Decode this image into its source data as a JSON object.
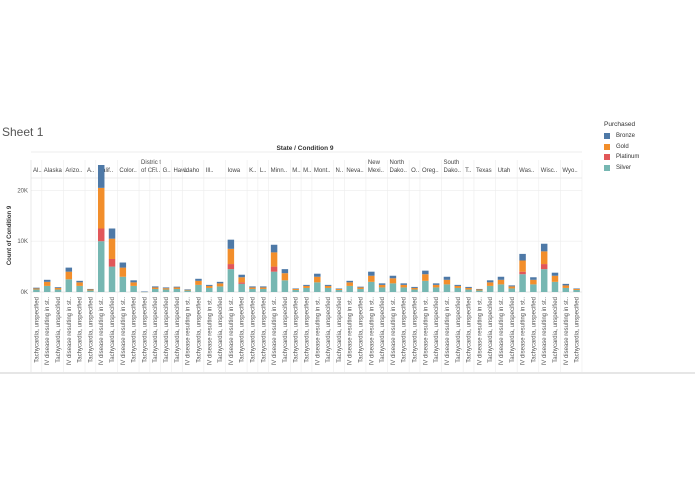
{
  "sheet": {
    "title": "Sheet 1"
  },
  "legend": {
    "title": "Purchased",
    "items": [
      {
        "label": "Bronze",
        "color": "#4e79a7"
      },
      {
        "label": "Gold",
        "color": "#f28e2b"
      },
      {
        "label": "Platinum",
        "color": "#e15759"
      },
      {
        "label": "Silver",
        "color": "#76b7b2"
      }
    ]
  },
  "chart_data": {
    "type": "bar",
    "stacked": true,
    "title": "State / Condition 9",
    "ylabel": "Count of Condition 9",
    "yticks": [
      {
        "value": 0,
        "label": "0K"
      },
      {
        "value": 10000,
        "label": "10K"
      },
      {
        "value": 20000,
        "label": "20K"
      }
    ],
    "ylim": [
      0,
      25000
    ],
    "grid": true,
    "legend_position": "right",
    "category_short": "Tachycardia, unspecified",
    "category_iv": "IV disease resulting in st..",
    "series_order": [
      "Silver",
      "Platinum",
      "Gold",
      "Bronze"
    ],
    "states": [
      {
        "label": "Al..",
        "bars": [
          [
            500,
            0,
            200,
            150
          ]
        ]
      },
      {
        "label": "Alaska",
        "bars": [
          [
            1200,
            0,
            800,
            400
          ],
          [
            500,
            0,
            300,
            150
          ]
        ]
      },
      {
        "label": "Arizo..",
        "bars": [
          [
            2500,
            0,
            1500,
            800
          ],
          [
            1200,
            0,
            700,
            300
          ]
        ]
      },
      {
        "label": "A..",
        "bars": [
          [
            300,
            0,
            200,
            100
          ]
        ]
      },
      {
        "label": "Calif..",
        "bars": [
          [
            10000,
            2500,
            8000,
            4500
          ],
          [
            5000,
            1500,
            4000,
            2000
          ]
        ]
      },
      {
        "label": "Color..",
        "bars": [
          [
            3000,
            0,
            1800,
            1000
          ],
          [
            1200,
            0,
            700,
            400
          ]
        ]
      },
      {
        "label": "Distric t of C..",
        "bars": [
          [
            50,
            0,
            30,
            20
          ]
        ]
      },
      {
        "label": "Fl..",
        "bars": [
          [
            600,
            0,
            300,
            200
          ]
        ]
      },
      {
        "label": "G..",
        "bars": [
          [
            500,
            0,
            250,
            150
          ]
        ]
      },
      {
        "label": "Haw..",
        "bars": [
          [
            600,
            0,
            300,
            150
          ]
        ]
      },
      {
        "label": "Idaho",
        "bars": [
          [
            300,
            0,
            150,
            80
          ],
          [
            1400,
            0,
            800,
            400
          ]
        ]
      },
      {
        "label": "Ill..",
        "bars": [
          [
            800,
            0,
            400,
            200
          ],
          [
            1100,
            0,
            600,
            300
          ]
        ]
      },
      {
        "label": "Iowa",
        "bars": [
          [
            4500,
            1000,
            3000,
            1800
          ],
          [
            1600,
            300,
            1000,
            500
          ]
        ]
      },
      {
        "label": "K..",
        "bars": [
          [
            600,
            0,
            300,
            200
          ]
        ]
      },
      {
        "label": "L..",
        "bars": [
          [
            600,
            0,
            300,
            200
          ]
        ]
      },
      {
        "label": "Minn..",
        "bars": [
          [
            4000,
            1000,
            2800,
            1500
          ],
          [
            2300,
            0,
            1400,
            800
          ]
        ]
      },
      {
        "label": "M..",
        "bars": [
          [
            400,
            0,
            200,
            100
          ]
        ]
      },
      {
        "label": "M..",
        "bars": [
          [
            800,
            0,
            400,
            200
          ]
        ]
      },
      {
        "label": "Mont..",
        "bars": [
          [
            1900,
            0,
            1100,
            600
          ],
          [
            800,
            0,
            400,
            200
          ]
        ]
      },
      {
        "label": "N..",
        "bars": [
          [
            400,
            0,
            200,
            100
          ]
        ]
      },
      {
        "label": "Neva..",
        "bars": [
          [
            1200,
            0,
            700,
            300
          ],
          [
            600,
            0,
            300,
            150
          ]
        ]
      },
      {
        "label": "New Mexi..",
        "bars": [
          [
            2000,
            0,
            1200,
            800
          ],
          [
            900,
            0,
            500,
            300
          ]
        ]
      },
      {
        "label": "North Dako..",
        "bars": [
          [
            1700,
            0,
            1000,
            500
          ],
          [
            900,
            0,
            500,
            300
          ]
        ]
      },
      {
        "label": "O..",
        "bars": [
          [
            500,
            0,
            300,
            200
          ]
        ]
      },
      {
        "label": "Oreg..",
        "bars": [
          [
            2200,
            0,
            1300,
            700
          ],
          [
            900,
            0,
            500,
            300
          ]
        ]
      },
      {
        "label": "South Dako..",
        "bars": [
          [
            1500,
            0,
            900,
            600
          ],
          [
            800,
            0,
            400,
            200
          ]
        ]
      },
      {
        "label": "T..",
        "bars": [
          [
            500,
            0,
            300,
            200
          ]
        ]
      },
      {
        "label": "Texas",
        "bars": [
          [
            300,
            0,
            200,
            100
          ],
          [
            1200,
            0,
            700,
            400
          ]
        ]
      },
      {
        "label": "Utah",
        "bars": [
          [
            1500,
            0,
            900,
            600
          ],
          [
            700,
            0,
            400,
            200
          ]
        ]
      },
      {
        "label": "Was..",
        "bars": [
          [
            3500,
            500,
            2200,
            1300
          ],
          [
            1500,
            0,
            900,
            500
          ]
        ]
      },
      {
        "label": "Wisc..",
        "bars": [
          [
            4500,
            1000,
            2500,
            1500
          ],
          [
            2000,
            0,
            1200,
            600
          ]
        ]
      },
      {
        "label": "Wyo..",
        "bars": [
          [
            800,
            0,
            500,
            300
          ],
          [
            400,
            0,
            200,
            100
          ]
        ]
      }
    ]
  }
}
